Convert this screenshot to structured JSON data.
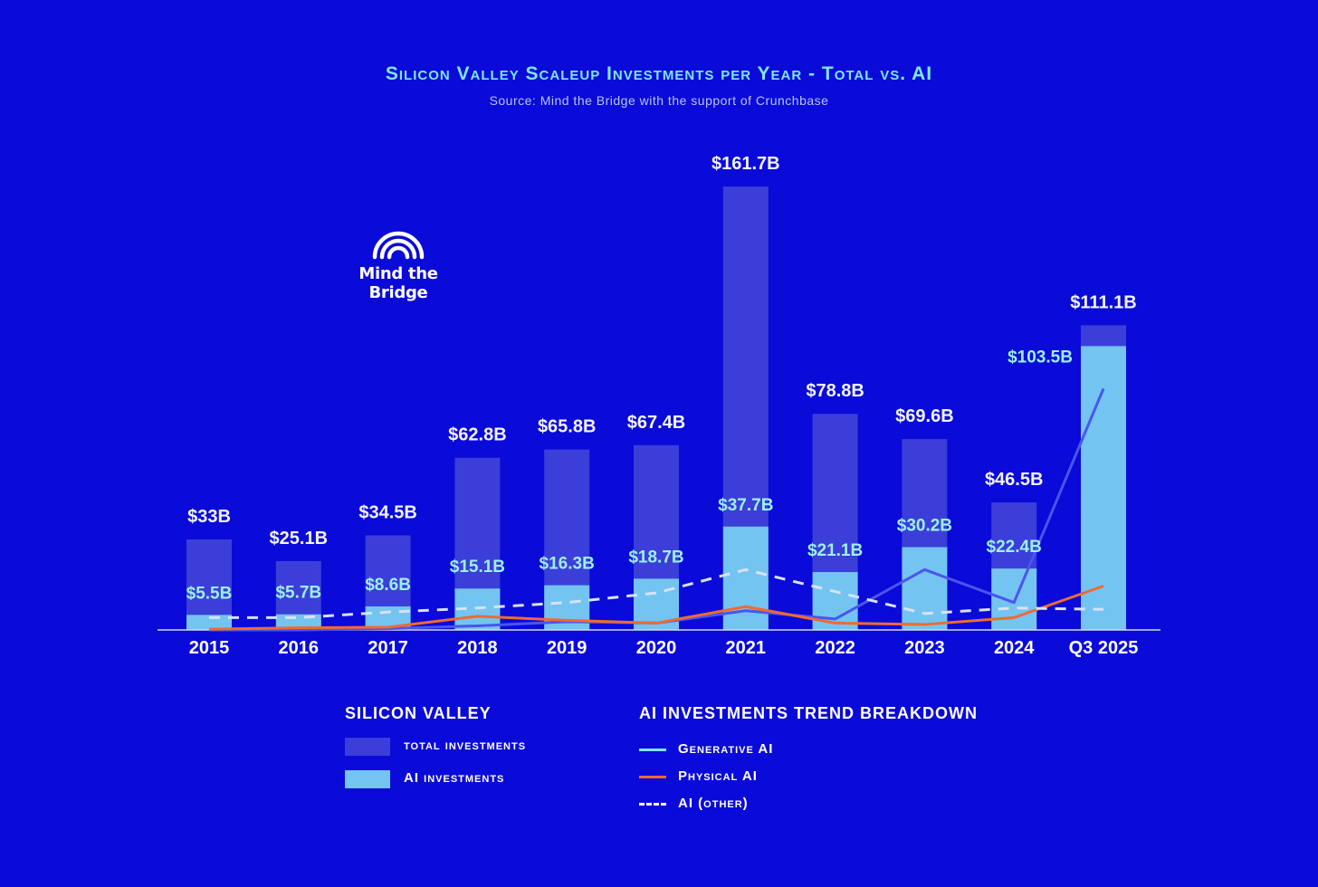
{
  "title": "Silicon Valley Scaleup Investments per Year - Total vs. AI",
  "subtitle": "Source: Mind the Bridge with the support of Crunchbase",
  "logo": {
    "text": "Mind the Bridge"
  },
  "colors": {
    "background": "#0a0ad9",
    "total_bar": "#3b3ed8",
    "ai_bar": "#74c4f2",
    "generative_ai": "#4a55ee",
    "physical_ai": "#f06a2f",
    "ai_other": "#d8e2f5",
    "title": "#7fe7f2",
    "ai_label": "#9ef0f5"
  },
  "chart_data": {
    "type": "bar",
    "categories": [
      "2015",
      "2016",
      "2017",
      "2018",
      "2019",
      "2020",
      "2021",
      "2022",
      "2023",
      "2024",
      "Q3 2025"
    ],
    "series": [
      {
        "name": "total investments",
        "values": [
          33,
          25.1,
          34.5,
          62.8,
          65.8,
          67.4,
          161.7,
          78.8,
          69.6,
          46.5,
          111.1
        ]
      },
      {
        "name": "AI investments",
        "values": [
          5.5,
          5.7,
          8.6,
          15.1,
          16.3,
          18.7,
          37.7,
          21.1,
          30.2,
          22.4,
          103.5
        ]
      }
    ],
    "total_labels": [
      "$33B",
      "$25.1B",
      "$34.5B",
      "$62.8B",
      "$65.8B",
      "$67.4B",
      "$161.7B",
      "$78.8B",
      "$69.6B",
      "$46.5B",
      "$111.1B"
    ],
    "ai_labels": [
      "$5.5B",
      "$5.7B",
      "$8.6B",
      "$15.1B",
      "$16.3B",
      "$18.7B",
      "$37.7B",
      "$21.1B",
      "$30.2B",
      "$22.4B",
      "$103.5B"
    ],
    "trend_lines": [
      {
        "name": "Generative AI",
        "style": "solid",
        "values": [
          0,
          0,
          0.5,
          1.5,
          3,
          2.5,
          7,
          4,
          22,
          10,
          88
        ]
      },
      {
        "name": "Physical AI",
        "style": "solid",
        "values": [
          0.3,
          0.8,
          1,
          5,
          3.5,
          2.5,
          8.5,
          2.5,
          2,
          4.5,
          16
        ]
      },
      {
        "name": "AI (other)",
        "style": "dashed",
        "values": [
          4.5,
          4.5,
          6.5,
          8,
          10,
          13.5,
          22,
          14,
          6,
          8,
          7.5
        ]
      }
    ],
    "ylim": [
      0,
      170
    ]
  },
  "legend": {
    "left_heading": "SILICON VALLEY",
    "left_items": [
      {
        "label": "total investments",
        "color": "#3b3ed8"
      },
      {
        "label": "AI investments",
        "color": "#74c4f2"
      }
    ],
    "right_heading": "AI INVESTMENTS TREND BREAKDOWN",
    "right_items": [
      {
        "label": "Generative AI",
        "color": "#7fe7f2",
        "style": "solid"
      },
      {
        "label": "Physical AI",
        "color": "#f06a2f",
        "style": "solid"
      },
      {
        "label": "AI (other)",
        "color": "#ffffff",
        "style": "dashed"
      }
    ]
  }
}
